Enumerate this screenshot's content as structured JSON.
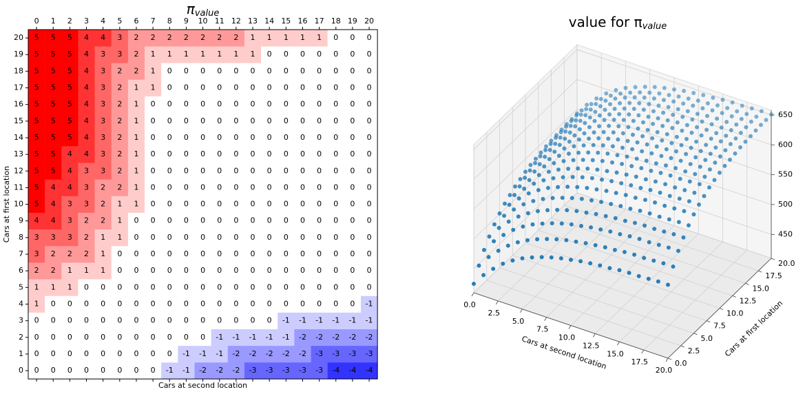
{
  "chart_data": [
    {
      "type": "heatmap",
      "title": "π",
      "title_subscript": "value",
      "xlabel": "Cars at second location",
      "ylabel": "Cars at first location",
      "colormap": "bwr",
      "x": [
        0,
        1,
        2,
        3,
        4,
        5,
        6,
        7,
        8,
        9,
        10,
        11,
        12,
        13,
        14,
        15,
        16,
        17,
        18,
        19,
        20
      ],
      "y": [
        0,
        1,
        2,
        3,
        4,
        5,
        6,
        7,
        8,
        9,
        10,
        11,
        12,
        13,
        14,
        15,
        16,
        17,
        18,
        19,
        20
      ],
      "values": [
        [
          0,
          0,
          0,
          0,
          0,
          0,
          0,
          0,
          -1,
          -1,
          -2,
          -2,
          -2,
          -3,
          -3,
          -3,
          -3,
          -3,
          -4,
          -4,
          -4
        ],
        [
          0,
          0,
          0,
          0,
          0,
          0,
          0,
          0,
          0,
          -1,
          -1,
          -1,
          -2,
          -2,
          -2,
          -2,
          -2,
          -3,
          -3,
          -3,
          -3
        ],
        [
          0,
          0,
          0,
          0,
          0,
          0,
          0,
          0,
          0,
          0,
          0,
          -1,
          -1,
          -1,
          -1,
          -1,
          -2,
          -2,
          -2,
          -2,
          -2
        ],
        [
          0,
          0,
          0,
          0,
          0,
          0,
          0,
          0,
          0,
          0,
          0,
          0,
          0,
          0,
          0,
          -1,
          -1,
          -1,
          -1,
          -1,
          -1
        ],
        [
          1,
          0,
          0,
          0,
          0,
          0,
          0,
          0,
          0,
          0,
          0,
          0,
          0,
          0,
          0,
          0,
          0,
          0,
          0,
          0,
          -1
        ],
        [
          1,
          1,
          1,
          0,
          0,
          0,
          0,
          0,
          0,
          0,
          0,
          0,
          0,
          0,
          0,
          0,
          0,
          0,
          0,
          0,
          0
        ],
        [
          2,
          2,
          1,
          1,
          1,
          0,
          0,
          0,
          0,
          0,
          0,
          0,
          0,
          0,
          0,
          0,
          0,
          0,
          0,
          0,
          0
        ],
        [
          3,
          2,
          2,
          2,
          1,
          0,
          0,
          0,
          0,
          0,
          0,
          0,
          0,
          0,
          0,
          0,
          0,
          0,
          0,
          0,
          0
        ],
        [
          3,
          3,
          3,
          2,
          1,
          1,
          0,
          0,
          0,
          0,
          0,
          0,
          0,
          0,
          0,
          0,
          0,
          0,
          0,
          0,
          0
        ],
        [
          4,
          4,
          3,
          2,
          2,
          1,
          0,
          0,
          0,
          0,
          0,
          0,
          0,
          0,
          0,
          0,
          0,
          0,
          0,
          0,
          0
        ],
        [
          5,
          4,
          3,
          3,
          2,
          1,
          1,
          0,
          0,
          0,
          0,
          0,
          0,
          0,
          0,
          0,
          0,
          0,
          0,
          0,
          0
        ],
        [
          5,
          4,
          4,
          3,
          2,
          2,
          1,
          0,
          0,
          0,
          0,
          0,
          0,
          0,
          0,
          0,
          0,
          0,
          0,
          0,
          0
        ],
        [
          5,
          5,
          4,
          3,
          3,
          2,
          1,
          0,
          0,
          0,
          0,
          0,
          0,
          0,
          0,
          0,
          0,
          0,
          0,
          0,
          0
        ],
        [
          5,
          5,
          4,
          4,
          3,
          2,
          1,
          0,
          0,
          0,
          0,
          0,
          0,
          0,
          0,
          0,
          0,
          0,
          0,
          0,
          0
        ],
        [
          5,
          5,
          5,
          4,
          3,
          2,
          1,
          0,
          0,
          0,
          0,
          0,
          0,
          0,
          0,
          0,
          0,
          0,
          0,
          0,
          0
        ],
        [
          5,
          5,
          5,
          4,
          3,
          2,
          1,
          0,
          0,
          0,
          0,
          0,
          0,
          0,
          0,
          0,
          0,
          0,
          0,
          0,
          0
        ],
        [
          5,
          5,
          5,
          4,
          3,
          2,
          1,
          0,
          0,
          0,
          0,
          0,
          0,
          0,
          0,
          0,
          0,
          0,
          0,
          0,
          0
        ],
        [
          5,
          5,
          5,
          4,
          3,
          2,
          1,
          1,
          0,
          0,
          0,
          0,
          0,
          0,
          0,
          0,
          0,
          0,
          0,
          0,
          0
        ],
        [
          5,
          5,
          5,
          4,
          3,
          2,
          2,
          1,
          0,
          0,
          0,
          0,
          0,
          0,
          0,
          0,
          0,
          0,
          0,
          0,
          0
        ],
        [
          5,
          5,
          5,
          4,
          3,
          3,
          2,
          1,
          1,
          1,
          1,
          1,
          1,
          1,
          0,
          0,
          0,
          0,
          0,
          0,
          0
        ],
        [
          5,
          5,
          5,
          4,
          4,
          3,
          2,
          2,
          2,
          2,
          2,
          2,
          2,
          1,
          1,
          1,
          1,
          1,
          0,
          0,
          0
        ]
      ]
    },
    {
      "type": "scatter3d",
      "title": "value for π",
      "title_subscript": "value",
      "xlabel": "Cars at second location",
      "ylabel": "Cars at first location",
      "color": "#1f77b4",
      "x": [
        0,
        1,
        2,
        3,
        4,
        5,
        6,
        7,
        8,
        9,
        10,
        11,
        12,
        13,
        14,
        15,
        16,
        17,
        18,
        19,
        20
      ],
      "y": [
        0,
        1,
        2,
        3,
        4,
        5,
        6,
        7,
        8,
        9,
        10,
        11,
        12,
        13,
        14,
        15,
        16,
        17,
        18,
        19,
        20
      ],
      "z": [
        [
          425,
          445,
          461,
          475,
          486,
          495,
          502,
          508,
          513,
          517,
          520,
          523,
          525,
          527,
          528,
          530,
          531,
          531,
          532,
          533,
          533
        ],
        [
          447,
          467,
          483,
          497,
          508,
          517,
          524,
          530,
          535,
          539,
          542,
          545,
          547,
          549,
          550,
          552,
          553,
          553,
          554,
          555,
          555
        ],
        [
          465,
          485,
          501,
          515,
          526,
          535,
          542,
          548,
          553,
          557,
          560,
          563,
          565,
          567,
          568,
          570,
          571,
          571,
          572,
          573,
          573
        ],
        [
          479,
          499,
          515,
          529,
          540,
          549,
          556,
          562,
          567,
          571,
          574,
          577,
          579,
          581,
          582,
          584,
          585,
          585,
          586,
          587,
          587
        ],
        [
          491,
          511,
          527,
          541,
          552,
          561,
          568,
          574,
          579,
          583,
          586,
          589,
          591,
          593,
          594,
          596,
          597,
          597,
          598,
          599,
          599
        ],
        [
          501,
          521,
          537,
          551,
          562,
          571,
          578,
          584,
          589,
          593,
          596,
          599,
          601,
          603,
          604,
          606,
          607,
          607,
          608,
          609,
          609
        ],
        [
          509,
          529,
          545,
          559,
          570,
          579,
          586,
          592,
          597,
          601,
          604,
          607,
          609,
          611,
          612,
          614,
          615,
          615,
          616,
          617,
          617
        ],
        [
          515,
          535,
          551,
          565,
          576,
          585,
          592,
          598,
          603,
          607,
          610,
          613,
          615,
          617,
          618,
          620,
          621,
          621,
          622,
          623,
          623
        ],
        [
          521,
          541,
          557,
          571,
          582,
          591,
          598,
          604,
          609,
          613,
          616,
          619,
          621,
          623,
          624,
          626,
          627,
          627,
          628,
          629,
          629
        ],
        [
          525,
          545,
          561,
          575,
          586,
          595,
          602,
          608,
          613,
          617,
          620,
          623,
          625,
          627,
          628,
          630,
          631,
          631,
          632,
          633,
          633
        ],
        [
          529,
          549,
          565,
          579,
          590,
          599,
          606,
          612,
          617,
          621,
          624,
          627,
          629,
          631,
          632,
          634,
          635,
          635,
          636,
          637,
          637
        ],
        [
          532,
          552,
          568,
          582,
          593,
          602,
          609,
          615,
          620,
          624,
          627,
          630,
          632,
          634,
          635,
          637,
          638,
          638,
          639,
          640,
          640
        ],
        [
          534,
          554,
          570,
          584,
          595,
          604,
          611,
          617,
          622,
          626,
          629,
          632,
          634,
          636,
          637,
          639,
          640,
          640,
          641,
          642,
          642
        ],
        [
          536,
          556,
          572,
          586,
          597,
          606,
          613,
          619,
          624,
          628,
          631,
          634,
          636,
          638,
          639,
          641,
          642,
          642,
          643,
          644,
          644
        ],
        [
          538,
          558,
          574,
          588,
          599,
          608,
          615,
          621,
          626,
          630,
          633,
          636,
          638,
          640,
          641,
          643,
          644,
          644,
          645,
          646,
          646
        ],
        [
          539,
          559,
          575,
          589,
          600,
          609,
          616,
          622,
          627,
          631,
          634,
          637,
          639,
          641,
          642,
          644,
          645,
          645,
          646,
          647,
          647
        ],
        [
          540,
          560,
          576,
          590,
          601,
          610,
          617,
          623,
          628,
          632,
          635,
          638,
          640,
          642,
          643,
          645,
          646,
          646,
          647,
          648,
          648
        ],
        [
          541,
          561,
          577,
          591,
          602,
          611,
          618,
          624,
          629,
          633,
          636,
          639,
          641,
          643,
          644,
          646,
          647,
          647,
          648,
          649,
          649
        ],
        [
          542,
          562,
          578,
          592,
          603,
          612,
          619,
          625,
          630,
          634,
          637,
          640,
          642,
          644,
          645,
          647,
          648,
          648,
          649,
          650,
          650
        ],
        [
          542,
          562,
          578,
          592,
          603,
          612,
          619,
          625,
          630,
          634,
          637,
          640,
          642,
          644,
          645,
          647,
          648,
          648,
          649,
          650,
          650
        ],
        [
          543,
          563,
          579,
          593,
          604,
          613,
          620,
          626,
          631,
          635,
          638,
          641,
          643,
          645,
          646,
          648,
          649,
          649,
          650,
          651,
          651
        ]
      ],
      "xlim": [
        0,
        20
      ],
      "xticks": [
        {
          "value": 0,
          "label": "0.0"
        },
        2.5,
        {
          "value": 5,
          "label": "5.0"
        },
        7.5,
        {
          "value": 10,
          "label": "10.0"
        },
        12.5,
        {
          "value": 15,
          "label": "15.0"
        },
        17.5,
        {
          "value": 20,
          "label": "20.0"
        }
      ],
      "ylim": [
        0,
        20
      ],
      "yticks": [
        {
          "value": 0,
          "label": "0.0"
        },
        2.5,
        {
          "value": 5,
          "label": "5.0"
        },
        7.5,
        {
          "value": 10,
          "label": "10.0"
        },
        12.5,
        {
          "value": 15,
          "label": "15.0"
        },
        17.5,
        {
          "value": 20,
          "label": "20.0"
        }
      ],
      "zlim": [
        410,
        658
      ],
      "zticks": [
        450,
        500,
        550,
        600,
        650
      ],
      "grid": true
    }
  ]
}
